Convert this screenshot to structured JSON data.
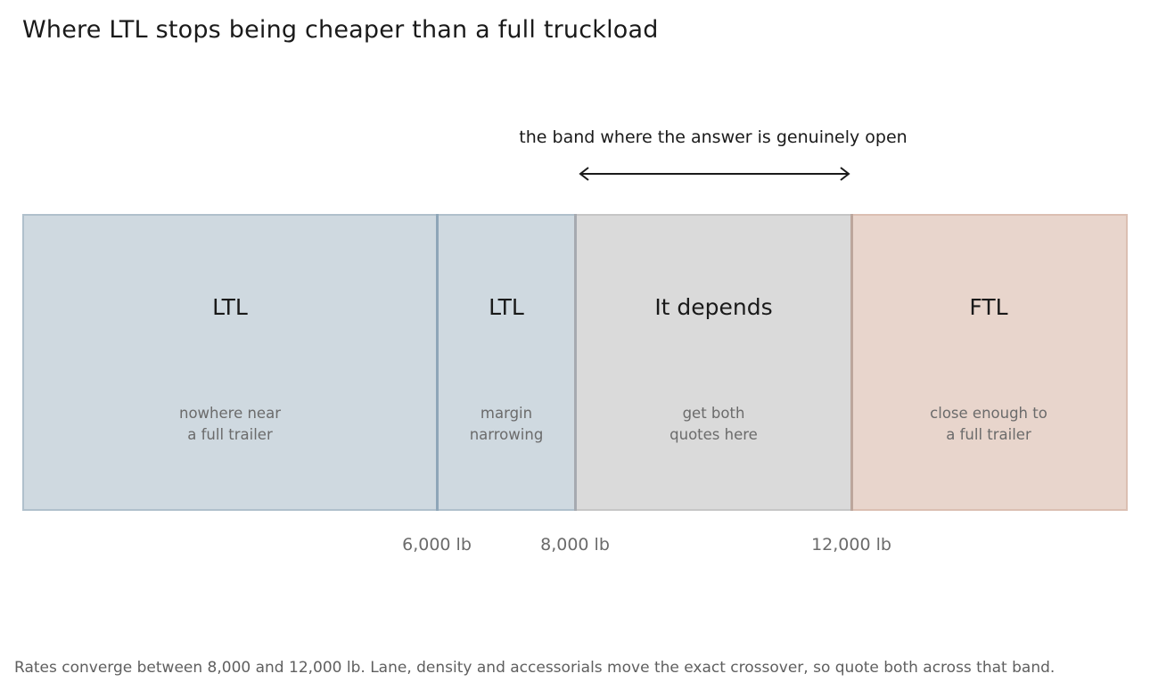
{
  "title": "Where LTL stops being cheaper than a full truckload",
  "annotation": "the band where the answer is genuinely open",
  "bands": [
    {
      "label": "LTL",
      "desc": "nowhere near\na full trailer",
      "fill": "#cfd9e0",
      "border": "#b0c0cc"
    },
    {
      "label": "LTL",
      "desc": "margin\nnarrowing",
      "fill": "#cfd9e0",
      "border": "#b0c0cc"
    },
    {
      "label": "It depends",
      "desc": "get both\nquotes here",
      "fill": "#dadada",
      "border": "#c6c6c6"
    },
    {
      "label": "FTL",
      "desc": "close enough to\na full trailer",
      "fill": "#e8d5cc",
      "border": "#dbbfb2"
    }
  ],
  "thresholds": [
    {
      "value": 6000,
      "label": "6,000 lb",
      "color": "#8ea6b8"
    },
    {
      "value": 8000,
      "label": "8,000 lb",
      "color": "#a6aab0"
    },
    {
      "value": 12000,
      "label": "12,000 lb",
      "color": "#bca69c"
    }
  ],
  "footer": "Rates converge between 8,000 and 12,000 lb. Lane, density and accessorials move the exact crossover, so quote both across that band.",
  "colors": {
    "arrow": "#1a1a1a",
    "text": "#1a1a1a",
    "muted": "#6b6b6b"
  }
}
